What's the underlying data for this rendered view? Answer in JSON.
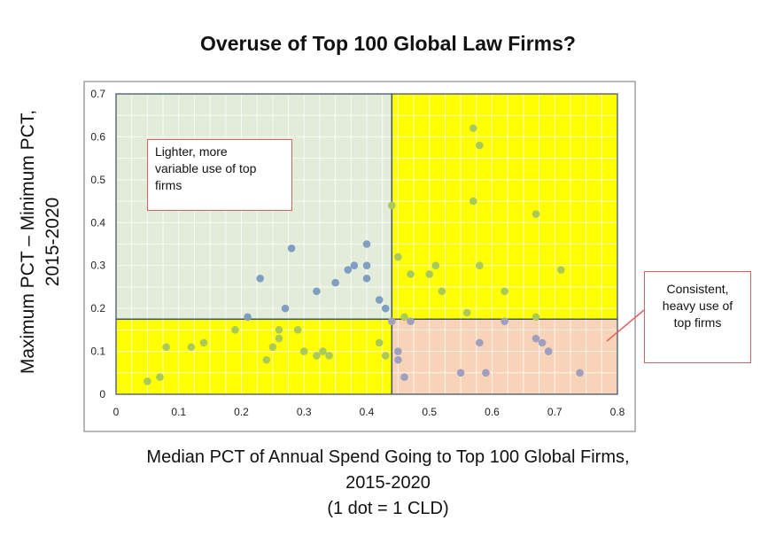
{
  "chart_data": {
    "type": "scatter",
    "title": "Overuse of Top 100 Global Law Firms?",
    "ylabel_lines": [
      "Maximum PCT – Minimum PCT,",
      "2015-2020"
    ],
    "xlabel_lines": [
      "Median PCT of Annual Spend Going to Top 100 Global Firms,",
      "2015-2020",
      "(1 dot = 1 CLD)"
    ],
    "xlim": [
      0,
      0.8
    ],
    "ylim": [
      0,
      0.7
    ],
    "x_ticks": [
      "0",
      "0.1",
      "0.2",
      "0.3",
      "0.4",
      "0.5",
      "0.6",
      "0.7",
      "0.8"
    ],
    "y_ticks": [
      "0",
      "0.1",
      "0.2",
      "0.3",
      "0.4",
      "0.5",
      "0.6",
      "0.7"
    ],
    "grid": true,
    "divider_x": 0.44,
    "divider_y": 0.175,
    "quadrant_colors": {
      "upper_left": "#e2ecd9",
      "upper_right": "#ffff00",
      "lower_left": "#ffff00",
      "lower_right": "#f8d3b8"
    },
    "dot_color_by_quadrant": {
      "upper_left": "#7f9fc2",
      "upper_right": "#a9c95a",
      "lower_left": "#a9c95a",
      "lower_right": "#9f9fbf"
    },
    "annotations": [
      {
        "text": "Lighter, more variable use of top firms",
        "lines": [
          "Lighter, more",
          "variable use of top",
          "firms"
        ]
      },
      {
        "text": "Consistent, heavy use of top firms",
        "lines": [
          "Consistent,",
          "heavy use of",
          "top firms"
        ]
      }
    ],
    "points": [
      [
        0.44,
        0.44
      ],
      [
        0.4,
        0.35
      ],
      [
        0.28,
        0.34
      ],
      [
        0.4,
        0.3
      ],
      [
        0.38,
        0.3
      ],
      [
        0.37,
        0.29
      ],
      [
        0.4,
        0.27
      ],
      [
        0.23,
        0.27
      ],
      [
        0.35,
        0.26
      ],
      [
        0.32,
        0.24
      ],
      [
        0.42,
        0.22
      ],
      [
        0.27,
        0.2
      ],
      [
        0.43,
        0.2
      ],
      [
        0.21,
        0.18
      ],
      [
        0.57,
        0.62
      ],
      [
        0.58,
        0.58
      ],
      [
        0.57,
        0.45
      ],
      [
        0.67,
        0.42
      ],
      [
        0.45,
        0.32
      ],
      [
        0.51,
        0.3
      ],
      [
        0.58,
        0.3
      ],
      [
        0.71,
        0.29
      ],
      [
        0.47,
        0.28
      ],
      [
        0.5,
        0.28
      ],
      [
        0.52,
        0.24
      ],
      [
        0.62,
        0.24
      ],
      [
        0.56,
        0.19
      ],
      [
        0.67,
        0.18
      ],
      [
        0.46,
        0.18
      ],
      [
        0.47,
        0.17
      ],
      [
        0.62,
        0.17
      ],
      [
        0.19,
        0.15
      ],
      [
        0.26,
        0.15
      ],
      [
        0.29,
        0.15
      ],
      [
        0.26,
        0.13
      ],
      [
        0.25,
        0.11
      ],
      [
        0.3,
        0.1
      ],
      [
        0.33,
        0.1
      ],
      [
        0.42,
        0.12
      ],
      [
        0.14,
        0.12
      ],
      [
        0.12,
        0.11
      ],
      [
        0.08,
        0.11
      ],
      [
        0.32,
        0.09
      ],
      [
        0.34,
        0.09
      ],
      [
        0.43,
        0.09
      ],
      [
        0.24,
        0.08
      ],
      [
        0.07,
        0.04
      ],
      [
        0.05,
        0.03
      ],
      [
        0.44,
        0.17
      ],
      [
        0.45,
        0.1
      ],
      [
        0.45,
        0.08
      ],
      [
        0.46,
        0.04
      ],
      [
        0.67,
        0.13
      ],
      [
        0.68,
        0.12
      ],
      [
        0.58,
        0.12
      ],
      [
        0.69,
        0.1
      ],
      [
        0.59,
        0.05
      ],
      [
        0.55,
        0.05
      ],
      [
        0.74,
        0.05
      ]
    ]
  }
}
